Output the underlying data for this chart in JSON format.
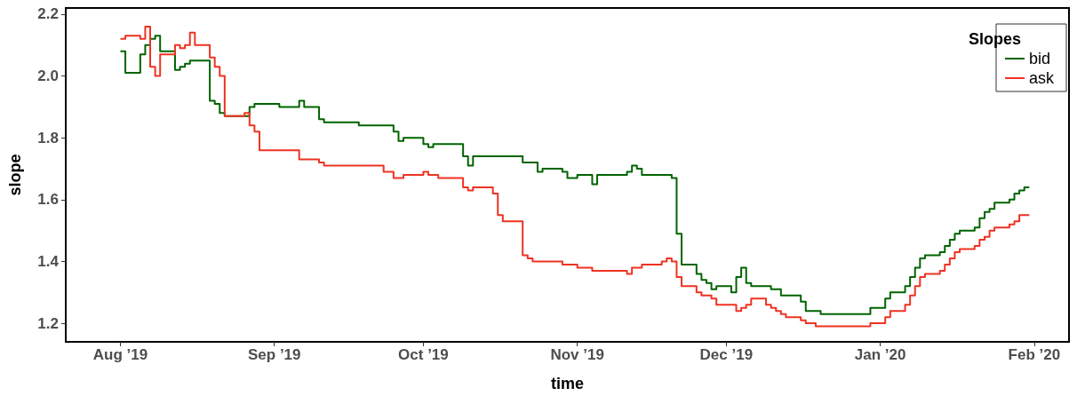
{
  "chart_data": {
    "type": "step",
    "xlabel": "time",
    "ylabel": "slope",
    "legend_title": "Slopes",
    "legend": "top right",
    "grid": false,
    "marker": "none",
    "line_style": "solid",
    "xlim": [
      "2019-07-21",
      "2020-02-08"
    ],
    "xticks": [
      {
        "value": "2019-08-01",
        "label": "Aug ’19"
      },
      {
        "value": "2019-09-01",
        "label": "Sep ’19"
      },
      {
        "value": "2019-10-01",
        "label": "Oct ’19"
      },
      {
        "value": "2019-11-01",
        "label": "Nov ’19"
      },
      {
        "value": "2019-12-01",
        "label": "Dec ’19"
      },
      {
        "value": "2020-01-01",
        "label": "Jan ’20"
      },
      {
        "value": "2020-02-01",
        "label": "Feb ’20"
      }
    ],
    "ylim": [
      1.14,
      2.22
    ],
    "yticks": [
      1.2,
      1.4,
      1.6,
      1.8,
      {
        "value": 2,
        "label": "2.0"
      },
      2.2
    ],
    "series": [
      {
        "name": "bid",
        "color": "#006400",
        "x": [
          "2019-08-01",
          "2019-08-02",
          "2019-08-05",
          "2019-08-06",
          "2019-08-07",
          "2019-08-08",
          "2019-08-09",
          "2019-08-12",
          "2019-08-13",
          "2019-08-14",
          "2019-08-15",
          "2019-08-19",
          "2019-08-20",
          "2019-08-21",
          "2019-08-22",
          "2019-08-27",
          "2019-08-28",
          "2019-09-02",
          "2019-09-06",
          "2019-09-07",
          "2019-09-10",
          "2019-09-11",
          "2019-09-13",
          "2019-09-18",
          "2019-09-23",
          "2019-09-25",
          "2019-09-26",
          "2019-09-27",
          "2019-10-01",
          "2019-10-02",
          "2019-10-03",
          "2019-10-09",
          "2019-10-10",
          "2019-10-11",
          "2019-10-21",
          "2019-10-24",
          "2019-10-25",
          "2019-10-29",
          "2019-10-30",
          "2019-11-01",
          "2019-11-04",
          "2019-11-05",
          "2019-11-07",
          "2019-11-11",
          "2019-11-12",
          "2019-11-13",
          "2019-11-14",
          "2019-11-18",
          "2019-11-20",
          "2019-11-21",
          "2019-11-22",
          "2019-11-25",
          "2019-11-26",
          "2019-11-27",
          "2019-11-28",
          "2019-11-29",
          "2019-12-02",
          "2019-12-03",
          "2019-12-04",
          "2019-12-05",
          "2019-12-06",
          "2019-12-10",
          "2019-12-12",
          "2019-12-16",
          "2019-12-17",
          "2019-12-19",
          "2019-12-20",
          "2019-12-30",
          "2020-01-02",
          "2020-01-03",
          "2020-01-06",
          "2020-01-07",
          "2020-01-08",
          "2020-01-09",
          "2020-01-10",
          "2020-01-13",
          "2020-01-14",
          "2020-01-15",
          "2020-01-16",
          "2020-01-17",
          "2020-01-20",
          "2020-01-21",
          "2020-01-22",
          "2020-01-23",
          "2020-01-24",
          "2020-01-27",
          "2020-01-28",
          "2020-01-29",
          "2020-01-30",
          "2020-01-31"
        ],
        "values": [
          2.08,
          2.01,
          2.07,
          2.1,
          2.12,
          2.13,
          2.08,
          2.02,
          2.03,
          2.04,
          2.05,
          1.92,
          1.91,
          1.88,
          1.87,
          1.9,
          1.91,
          1.9,
          1.92,
          1.9,
          1.86,
          1.85,
          1.85,
          1.84,
          1.84,
          1.82,
          1.79,
          1.8,
          1.78,
          1.77,
          1.78,
          1.74,
          1.71,
          1.74,
          1.72,
          1.69,
          1.7,
          1.69,
          1.67,
          1.68,
          1.65,
          1.68,
          1.68,
          1.69,
          1.71,
          1.7,
          1.68,
          1.68,
          1.67,
          1.49,
          1.39,
          1.36,
          1.34,
          1.33,
          1.31,
          1.32,
          1.3,
          1.35,
          1.38,
          1.33,
          1.32,
          1.31,
          1.29,
          1.27,
          1.24,
          1.24,
          1.23,
          1.25,
          1.28,
          1.3,
          1.32,
          1.35,
          1.38,
          1.41,
          1.42,
          1.43,
          1.45,
          1.47,
          1.49,
          1.5,
          1.51,
          1.54,
          1.56,
          1.57,
          1.59,
          1.6,
          1.62,
          1.63,
          1.64,
          1.64
        ]
      },
      {
        "name": "ask",
        "color": "#ee3322",
        "x": [
          "2019-08-01",
          "2019-08-02",
          "2019-08-05",
          "2019-08-06",
          "2019-08-07",
          "2019-08-08",
          "2019-08-09",
          "2019-08-12",
          "2019-08-13",
          "2019-08-14",
          "2019-08-15",
          "2019-08-16",
          "2019-08-19",
          "2019-08-20",
          "2019-08-21",
          "2019-08-22",
          "2019-08-26",
          "2019-08-27",
          "2019-08-28",
          "2019-08-29",
          "2019-09-06",
          "2019-09-10",
          "2019-09-11",
          "2019-09-23",
          "2019-09-25",
          "2019-09-27",
          "2019-10-01",
          "2019-10-02",
          "2019-10-04",
          "2019-10-09",
          "2019-10-10",
          "2019-10-11",
          "2019-10-15",
          "2019-10-16",
          "2019-10-17",
          "2019-10-21",
          "2019-10-22",
          "2019-10-23",
          "2019-10-29",
          "2019-11-01",
          "2019-11-04",
          "2019-11-11",
          "2019-11-12",
          "2019-11-14",
          "2019-11-18",
          "2019-11-19",
          "2019-11-20",
          "2019-11-21",
          "2019-11-22",
          "2019-11-25",
          "2019-11-26",
          "2019-11-28",
          "2019-11-29",
          "2019-12-03",
          "2019-12-04",
          "2019-12-05",
          "2019-12-06",
          "2019-12-09",
          "2019-12-10",
          "2019-12-11",
          "2019-12-12",
          "2019-12-13",
          "2019-12-16",
          "2019-12-17",
          "2019-12-19",
          "2019-12-30",
          "2020-01-02",
          "2020-01-03",
          "2020-01-06",
          "2020-01-07",
          "2020-01-08",
          "2020-01-09",
          "2020-01-10",
          "2020-01-13",
          "2020-01-14",
          "2020-01-15",
          "2020-01-16",
          "2020-01-17",
          "2020-01-20",
          "2020-01-21",
          "2020-01-22",
          "2020-01-23",
          "2020-01-24",
          "2020-01-27",
          "2020-01-28",
          "2020-01-29",
          "2020-01-31"
        ],
        "values": [
          2.12,
          2.13,
          2.12,
          2.16,
          2.03,
          2.0,
          2.07,
          2.1,
          2.09,
          2.1,
          2.14,
          2.1,
          2.06,
          2.03,
          2.0,
          1.87,
          1.88,
          1.84,
          1.82,
          1.76,
          1.73,
          1.72,
          1.71,
          1.69,
          1.67,
          1.68,
          1.69,
          1.68,
          1.67,
          1.64,
          1.63,
          1.64,
          1.62,
          1.55,
          1.53,
          1.42,
          1.41,
          1.4,
          1.39,
          1.38,
          1.37,
          1.36,
          1.38,
          1.39,
          1.4,
          1.41,
          1.4,
          1.35,
          1.32,
          1.3,
          1.29,
          1.28,
          1.26,
          1.24,
          1.25,
          1.26,
          1.28,
          1.26,
          1.25,
          1.24,
          1.23,
          1.22,
          1.21,
          1.2,
          1.19,
          1.2,
          1.22,
          1.24,
          1.26,
          1.29,
          1.32,
          1.35,
          1.36,
          1.37,
          1.39,
          1.41,
          1.43,
          1.44,
          1.45,
          1.47,
          1.48,
          1.5,
          1.51,
          1.52,
          1.53,
          1.55,
          1.55
        ]
      }
    ]
  }
}
